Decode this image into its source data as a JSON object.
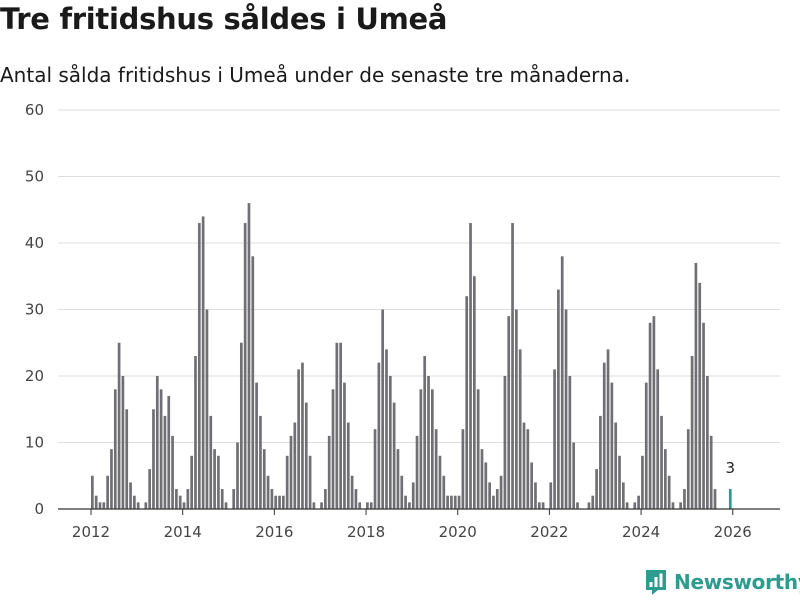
{
  "header": {
    "title": "Tre fritidshus såldes i Umeå",
    "subtitle": "Antal sålda fritidshus i Umeå under de senaste tre månaderna."
  },
  "brand": {
    "name": "Newsworthy",
    "icon": "newsworthy-logo-icon"
  },
  "colors": {
    "bar": "#707074",
    "highlight": "#2a9d8f",
    "grid": "#dddddd",
    "axis": "#333333"
  },
  "chart_data": {
    "type": "bar",
    "title": "Tre fritidshus såldes i Umeå",
    "subtitle": "Antal sålda fritidshus i Umeå under de senaste tre månaderna.",
    "xlabel": "",
    "ylabel": "",
    "ylim": [
      0,
      60
    ],
    "yticks": [
      0,
      10,
      20,
      30,
      40,
      50,
      60
    ],
    "xticks": [
      2012,
      2014,
      2016,
      2018,
      2020,
      2022,
      2024,
      2026
    ],
    "xtick_labels": [
      "2012",
      "2014",
      "2016",
      "2018",
      "2020",
      "2022",
      "2024",
      "2026"
    ],
    "start": "2012-01",
    "series": [
      {
        "name": "Antal sålda fritidshus",
        "values": [
          5,
          2,
          1,
          1,
          5,
          9,
          18,
          25,
          20,
          15,
          4,
          2,
          1,
          0,
          1,
          6,
          15,
          20,
          18,
          14,
          17,
          11,
          3,
          2,
          1,
          3,
          8,
          23,
          43,
          44,
          30,
          14,
          9,
          8,
          3,
          1,
          0,
          3,
          10,
          25,
          43,
          46,
          38,
          19,
          14,
          9,
          5,
          3,
          2,
          2,
          2,
          8,
          11,
          13,
          21,
          22,
          16,
          8,
          1,
          0,
          1,
          3,
          11,
          18,
          25,
          25,
          19,
          13,
          5,
          3,
          1,
          0,
          1,
          1,
          12,
          22,
          30,
          24,
          20,
          16,
          9,
          5,
          2,
          1,
          4,
          11,
          18,
          23,
          20,
          18,
          12,
          8,
          5,
          2,
          2,
          2,
          2,
          12,
          32,
          43,
          35,
          18,
          9,
          7,
          4,
          2,
          3,
          5,
          20,
          29,
          43,
          30,
          24,
          13,
          12,
          7,
          4,
          1,
          1,
          0,
          4,
          21,
          33,
          38,
          30,
          20,
          10,
          1,
          0,
          0,
          1,
          2,
          6,
          14,
          22,
          24,
          19,
          13,
          8,
          4,
          1,
          0,
          1,
          2,
          8,
          19,
          28,
          29,
          21,
          14,
          9,
          5,
          1,
          0,
          1,
          3,
          12,
          23,
          37,
          34,
          28,
          20,
          11,
          3,
          0,
          0,
          0,
          3
        ]
      }
    ],
    "highlight_last": true,
    "annotations": [
      {
        "label": "3",
        "at": "last"
      }
    ]
  }
}
